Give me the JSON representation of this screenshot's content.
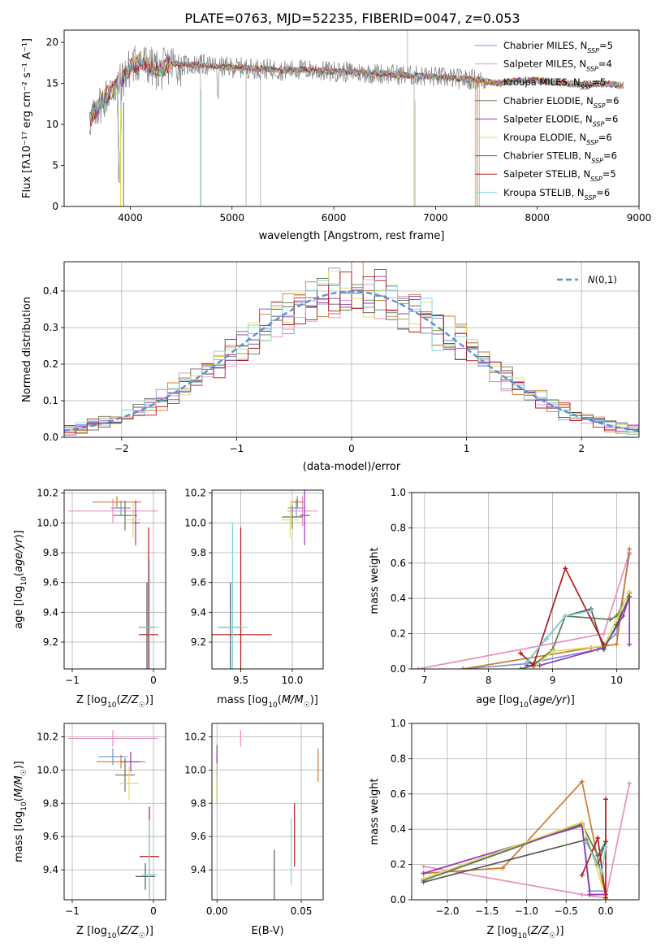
{
  "figure": {
    "title": "PLATE=0763, MJD=52235, FIBERID=0047, z=0.053"
  },
  "model_colors": [
    "#7a93d6",
    "#e98ec3",
    "#cf7a2c",
    "#5d7a55",
    "#9a35b5",
    "#e5da59",
    "#575757",
    "#b01a1a",
    "#7dd4d8"
  ],
  "chart_data": [
    {
      "id": "spectrum",
      "type": "line",
      "xlabel": "wavelength [Angstrom, rest frame]",
      "ylabel": "Flux [f$_\\lambda$10$^{-17}$ erg cm$^{-2}$ s$^{-1}$ A$^{-1}$]",
      "ylabel_display": "Flux [fλ10⁻¹⁷ erg cm⁻² s⁻¹ A⁻¹]",
      "xlim": [
        3350,
        9000
      ],
      "ylim": [
        0,
        21.5
      ],
      "xticks": [
        "4000",
        "5000",
        "6000",
        "7000",
        "8000",
        "9000"
      ],
      "yticks": [
        "0",
        "5",
        "10",
        "15",
        "20"
      ],
      "legend_position": "top-right",
      "legend": [
        "Chabrier MILES, N_SSP=5",
        "Salpeter MILES, N_SSP=4",
        "Kroupa MILES, N_SSP=5",
        "Chabrier ELODIE, N_SSP=6",
        "Salpeter ELODIE, N_SSP=6",
        "Kroupa ELODIE, N_SSP=6",
        "Chabrier STELIB, N_SSP=6",
        "Salpeter STELIB, N_SSP=5",
        "Kroupa STELIB, N_SSP=6"
      ],
      "legend_display": [
        {
          "name": "Chabrier MILES, N",
          "sub": "SSP",
          "tail": "=5"
        },
        {
          "name": "Salpeter MILES, N",
          "sub": "SSP",
          "tail": "=4"
        },
        {
          "name": "Kroupa MILES, N",
          "sub": "SSP",
          "tail": "=5"
        },
        {
          "name": "Chabrier ELODIE, N",
          "sub": "SSP",
          "tail": "=6"
        },
        {
          "name": "Salpeter ELODIE, N",
          "sub": "SSP",
          "tail": "=6"
        },
        {
          "name": "Kroupa ELODIE, N",
          "sub": "SSP",
          "tail": "=6"
        },
        {
          "name": "Chabrier STELIB, N",
          "sub": "SSP",
          "tail": "=6"
        },
        {
          "name": "Salpeter STELIB, N",
          "sub": "SSP",
          "tail": "=5"
        },
        {
          "name": "Kroupa STELIB, N",
          "sub": "SSP",
          "tail": "=6"
        }
      ],
      "data_envelope": {
        "x": [
          3600,
          3700,
          3800,
          3900,
          4000,
          4100,
          4200,
          4300,
          4400,
          4500,
          4700,
          4900,
          5100,
          5300,
          5500,
          5700,
          5900,
          6100,
          6300,
          6500,
          6700,
          6900,
          7100,
          7300,
          7400,
          7600,
          7800,
          8000,
          8200,
          8400,
          8600,
          8800
        ],
        "y": [
          10.5,
          12.5,
          14.0,
          15.0,
          17.0,
          17.8,
          17.0,
          16.5,
          17.5,
          17.2,
          17.3,
          17.0,
          16.9,
          16.8,
          16.6,
          16.7,
          16.5,
          16.4,
          16.3,
          16.2,
          16.0,
          15.9,
          15.7,
          15.5,
          15.5,
          15.0,
          15.3,
          15.4,
          15.1,
          14.9,
          15.0,
          14.8
        ]
      }
    },
    {
      "id": "residual-histogram",
      "type": "histogram",
      "xlabel": "(data-model)/error",
      "ylabel": "Normed distribution",
      "xlim": [
        -2.5,
        2.5
      ],
      "ylim": [
        0,
        0.48
      ],
      "xticks": [
        "−2",
        "−1",
        "0",
        "1",
        "2"
      ],
      "yticks": [
        "0.0",
        "0.1",
        "0.2",
        "0.3",
        "0.4"
      ],
      "legend_position": "top-right",
      "legend": [
        "N(0,1)"
      ],
      "reference_curve": "gaussian mean 0, sigma 1",
      "bin_width": 0.1,
      "bin_range": [
        -2.5,
        2.5
      ]
    },
    {
      "id": "age-vs-Z",
      "type": "errorbar",
      "xlabel": "Z [log10(Z/Z☉)]",
      "ylabel": "age  [log10(age/yr)]",
      "xlim": [
        -1.1,
        0.15
      ],
      "ylim": [
        9.02,
        10.22
      ],
      "xticks": [
        "−1",
        "0"
      ],
      "yticks": [
        "9.2",
        "9.4",
        "9.6",
        "9.8",
        "10.0",
        "10.2"
      ],
      "points": [
        {
          "model": 0,
          "x": -0.4,
          "y": 10.1,
          "xerr": 0.12,
          "yerr": 0.05
        },
        {
          "model": 1,
          "x": -0.5,
          "y": 10.08,
          "xerr": 0.55,
          "yerr": 0.08
        },
        {
          "model": 2,
          "x": -0.45,
          "y": 10.14,
          "xerr": 0.3,
          "yerr": 0.04
        },
        {
          "model": 3,
          "x": -0.35,
          "y": 10.05,
          "xerr": 0.15,
          "yerr": 0.1
        },
        {
          "model": 4,
          "x": -0.22,
          "y": 10.0,
          "xerr": 0.05,
          "yerr": 0.15
        },
        {
          "model": 5,
          "x": -0.25,
          "y": 10.02,
          "xerr": 0.1,
          "yerr": 0.12
        },
        {
          "model": 6,
          "x": -0.08,
          "y": 9.3,
          "xerr": 0.1,
          "yerr": 0.3
        },
        {
          "model": 7,
          "x": -0.06,
          "y": 9.25,
          "xerr": 0.12,
          "yerr": 0.72
        },
        {
          "model": 8,
          "x": -0.05,
          "y": 9.3,
          "xerr": 0.12,
          "yerr": 0.45
        }
      ]
    },
    {
      "id": "age-vs-mass",
      "type": "errorbar",
      "xlabel": "mass [log10(M/M☉)]",
      "ylabel": "",
      "xlim": [
        9.22,
        10.3
      ],
      "ylim": [
        9.02,
        10.22
      ],
      "xticks": [
        "9.5",
        "10.0"
      ],
      "yticks": [
        "9.2",
        "9.4",
        "9.6",
        "9.8",
        "10.0",
        "10.2"
      ],
      "points": [
        {
          "model": 0,
          "x": 10.04,
          "y": 10.1,
          "xerr": 0.08,
          "yerr": 0.06
        },
        {
          "model": 1,
          "x": 10.1,
          "y": 10.08,
          "xerr": 0.15,
          "yerr": 0.1
        },
        {
          "model": 2,
          "x": 10.05,
          "y": 10.14,
          "xerr": 0.06,
          "yerr": 0.04
        },
        {
          "model": 3,
          "x": 10.0,
          "y": 10.04,
          "xerr": 0.1,
          "yerr": 0.08
        },
        {
          "model": 4,
          "x": 10.12,
          "y": 10.05,
          "xerr": 0.05,
          "yerr": 0.2
        },
        {
          "model": 5,
          "x": 9.98,
          "y": 10.02,
          "xerr": 0.08,
          "yerr": 0.12
        },
        {
          "model": 6,
          "x": 9.4,
          "y": 9.3,
          "xerr": 0.12,
          "yerr": 0.3
        },
        {
          "model": 7,
          "x": 9.5,
          "y": 9.25,
          "xerr": 0.3,
          "yerr": 0.72
        },
        {
          "model": 8,
          "x": 9.42,
          "y": 9.3,
          "xerr": 0.15,
          "yerr": 0.7
        }
      ]
    },
    {
      "id": "massweight-vs-age",
      "type": "line",
      "xlabel": "age  [log10(age/yr)]",
      "ylabel": "mass weight",
      "xlim": [
        6.8,
        10.35
      ],
      "ylim": [
        0,
        1.0
      ],
      "xticks": [
        "7",
        "8",
        "9",
        "10"
      ],
      "yticks": [
        "0.0",
        "0.2",
        "0.4",
        "0.6",
        "0.8",
        "1.0"
      ],
      "series": [
        {
          "model": 0,
          "x": [
            7.6,
            8.6,
            9.7,
            10.0,
            10.2
          ],
          "y": [
            0.0,
            0.03,
            0.11,
            0.2,
            0.65
          ]
        },
        {
          "model": 1,
          "x": [
            6.9,
            9.8,
            10.2
          ],
          "y": [
            0.0,
            0.2,
            0.66
          ]
        },
        {
          "model": 2,
          "x": [
            7.6,
            9.6,
            10.0,
            10.2
          ],
          "y": [
            0.0,
            0.12,
            0.14,
            0.68
          ]
        },
        {
          "model": 3,
          "x": [
            8.5,
            8.7,
            9.0,
            9.2,
            9.9,
            10.0,
            10.2
          ],
          "y": [
            0.0,
            0.02,
            0.11,
            0.3,
            0.28,
            0.3,
            0.43
          ]
        },
        {
          "model": 4,
          "x": [
            8.6,
            8.8,
            9.8,
            10.1,
            10.2,
            10.2
          ],
          "y": [
            0.02,
            0.02,
            0.12,
            0.3,
            0.41,
            0.14
          ]
        },
        {
          "model": 5,
          "x": [
            8.7,
            9.0,
            9.8,
            10.0,
            10.2
          ],
          "y": [
            0.01,
            0.1,
            0.13,
            0.28,
            0.44
          ]
        },
        {
          "model": 6,
          "x": [
            8.6,
            8.9,
            9.2,
            9.6,
            9.8,
            10.0,
            10.2
          ],
          "y": [
            0.04,
            0.17,
            0.3,
            0.34,
            0.11,
            0.25,
            0.41
          ]
        },
        {
          "model": 7,
          "x": [
            8.5,
            8.7,
            9.2,
            9.8
          ],
          "y": [
            0.09,
            0.02,
            0.57,
            0.14
          ]
        },
        {
          "model": 8,
          "x": [
            8.6,
            8.9,
            9.2,
            9.6
          ],
          "y": [
            0.04,
            0.17,
            0.3,
            0.33
          ]
        }
      ]
    },
    {
      "id": "mass-vs-Z",
      "type": "errorbar",
      "xlabel": "Z [log10(Z/Z☉)]",
      "ylabel": "mass [log10(M/M☉)]",
      "xlim": [
        -1.1,
        0.15
      ],
      "ylim": [
        9.22,
        10.28
      ],
      "xticks": [
        "−1",
        "0"
      ],
      "yticks": [
        "9.4",
        "9.6",
        "9.8",
        "10.0",
        "10.2"
      ],
      "points": [
        {
          "model": 0,
          "x": -0.5,
          "y": 10.08,
          "xerr": 0.18,
          "yerr": 0.05
        },
        {
          "model": 1,
          "x": -0.5,
          "y": 10.19,
          "xerr": 0.55,
          "yerr": 0.05
        },
        {
          "model": 2,
          "x": -0.4,
          "y": 10.05,
          "xerr": 0.3,
          "yerr": 0.04
        },
        {
          "model": 3,
          "x": -0.35,
          "y": 9.97,
          "xerr": 0.12,
          "yerr": 0.1
        },
        {
          "model": 4,
          "x": -0.28,
          "y": 10.05,
          "xerr": 0.12,
          "yerr": 0.06
        },
        {
          "model": 5,
          "x": -0.3,
          "y": 9.92,
          "xerr": 0.12,
          "yerr": 0.1
        },
        {
          "model": 6,
          "x": -0.1,
          "y": 9.36,
          "xerr": 0.12,
          "yerr": 0.08
        },
        {
          "model": 7,
          "x": -0.05,
          "y": 9.48,
          "xerr": 0.12,
          "yerr": 0.3
        },
        {
          "model": 8,
          "x": -0.05,
          "y": 9.37,
          "xerr": 0.1,
          "yerr": 0.33
        }
      ]
    },
    {
      "id": "mass-vs-EBV",
      "type": "errorbar",
      "xlabel": "E(B-V)",
      "ylabel": "",
      "xlim": [
        -0.003,
        0.063
      ],
      "ylim": [
        9.22,
        10.28
      ],
      "xticks": [
        "0.00",
        "0.05"
      ],
      "yticks": [
        "9.4",
        "9.6",
        "9.8",
        "10.0",
        "10.2"
      ],
      "points": [
        {
          "model": 0,
          "x": 0.0,
          "y": 10.03,
          "xerr": 0,
          "yerr": 0.06
        },
        {
          "model": 1,
          "x": 0.014,
          "y": 10.19,
          "xerr": 0,
          "yerr": 0.05
        },
        {
          "model": 2,
          "x": 0.06,
          "y": 10.03,
          "xerr": 0,
          "yerr": 0.1
        },
        {
          "model": 3,
          "x": 0.0,
          "y": 9.9,
          "xerr": 0,
          "yerr": 0.1
        },
        {
          "model": 4,
          "x": 0.0,
          "y": 10.05,
          "xerr": 0,
          "yerr": 0.1
        },
        {
          "model": 5,
          "x": 0.0,
          "y": 9.92,
          "xerr": 0,
          "yerr": 0.12
        },
        {
          "model": 6,
          "x": 0.034,
          "y": 9.37,
          "xerr": 0,
          "yerr": 0.15
        },
        {
          "model": 7,
          "x": 0.046,
          "y": 9.61,
          "xerr": 0,
          "yerr": 0.19
        },
        {
          "model": 8,
          "x": 0.044,
          "y": 9.51,
          "xerr": 0,
          "yerr": 0.2
        }
      ]
    },
    {
      "id": "massweight-vs-Z",
      "type": "line",
      "xlabel": "Z [log10(Z/Z☉)]",
      "ylabel": "mass weight",
      "xlim": [
        -2.45,
        0.42
      ],
      "ylim": [
        0,
        1.0
      ],
      "xticks": [
        "−2.0",
        "−1.5",
        "−1.0",
        "−0.5",
        "0.0"
      ],
      "yticks": [
        "0.0",
        "0.2",
        "0.4",
        "0.6",
        "0.8",
        "1.0"
      ],
      "series": [
        {
          "model": 0,
          "x": [
            -2.3,
            -0.3,
            -0.2,
            0.0
          ],
          "y": [
            0.12,
            0.43,
            0.05,
            0.05
          ]
        },
        {
          "model": 1,
          "x": [
            -2.3,
            -0.3,
            0.0,
            0.3
          ],
          "y": [
            0.19,
            0.03,
            0.01,
            0.66
          ]
        },
        {
          "model": 2,
          "x": [
            -2.3,
            -1.3,
            -0.3,
            0.0
          ],
          "y": [
            0.15,
            0.18,
            0.67,
            0.01
          ]
        },
        {
          "model": 3,
          "x": [
            -2.3,
            -0.3,
            -0.1,
            0.0
          ],
          "y": [
            0.11,
            0.43,
            0.25,
            0.33
          ]
        },
        {
          "model": 4,
          "x": [
            -2.3,
            -0.3,
            -0.2,
            0.0
          ],
          "y": [
            0.15,
            0.42,
            0.03,
            0.03
          ]
        },
        {
          "model": 5,
          "x": [
            -2.3,
            -0.3,
            0.0
          ],
          "y": [
            0.12,
            0.44,
            0.02
          ]
        },
        {
          "model": 6,
          "x": [
            -2.3,
            -0.25,
            -0.1,
            0.0
          ],
          "y": [
            0.1,
            0.34,
            0.2,
            0.33
          ]
        },
        {
          "model": 7,
          "x": [
            -0.3,
            -0.1,
            0.0,
            0.0
          ],
          "y": [
            0.14,
            0.35,
            0.01,
            0.57
          ]
        },
        {
          "model": 8,
          "x": [
            -0.25,
            -0.05,
            0.0
          ],
          "y": [
            0.33,
            0.15,
            0.3
          ]
        }
      ]
    }
  ]
}
